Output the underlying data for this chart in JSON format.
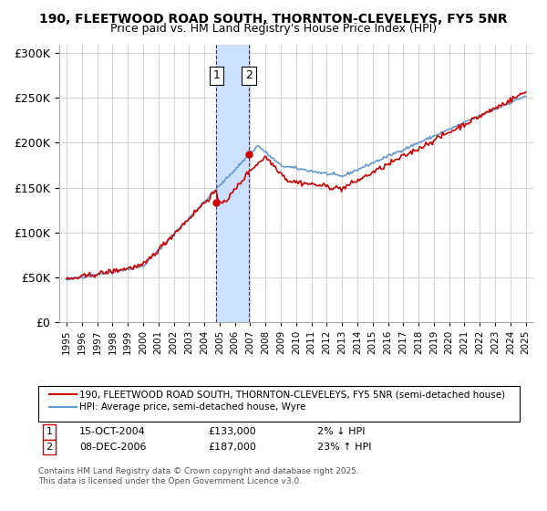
{
  "title": "190, FLEETWOOD ROAD SOUTH, THORNTON-CLEVELEYS, FY5 5NR",
  "subtitle": "Price paid vs. HM Land Registry's House Price Index (HPI)",
  "legend_line1": "190, FLEETWOOD ROAD SOUTH, THORNTON-CLEVELEYS, FY5 5NR (semi-detached house)",
  "legend_line2": "HPI: Average price, semi-detached house, Wyre",
  "footnote": "Contains HM Land Registry data © Crown copyright and database right 2025.\nThis data is licensed under the Open Government Licence v3.0.",
  "transaction1_label": "1",
  "transaction1_date": "15-OCT-2004",
  "transaction1_price": "£133,000",
  "transaction1_hpi": "2% ↓ HPI",
  "transaction2_label": "2",
  "transaction2_date": "08-DEC-2006",
  "transaction2_price": "£187,000",
  "transaction2_hpi": "23% ↑ HPI",
  "red_color": "#cc0000",
  "blue_color": "#6699cc",
  "shade_color": "#cce0ff",
  "background_color": "#ffffff",
  "grid_color": "#cccccc",
  "ylim": [
    0,
    310000
  ],
  "yticks": [
    0,
    50000,
    100000,
    150000,
    200000,
    250000,
    300000
  ],
  "xlim_start": 1994.5,
  "xlim_end": 2025.5,
  "transaction1_year": 2004.79,
  "transaction2_year": 2006.92
}
